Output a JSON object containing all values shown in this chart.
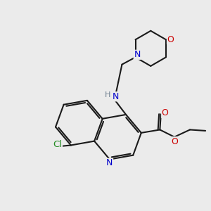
{
  "bg_color": "#ebebeb",
  "bond_color": "#1a1a1a",
  "bond_width": 1.5,
  "atom_colors": {
    "C": "#1a1a1a",
    "N": "#0000cc",
    "O": "#cc0000",
    "Cl": "#228B22",
    "H": "#708090"
  },
  "font_size": 8.5
}
